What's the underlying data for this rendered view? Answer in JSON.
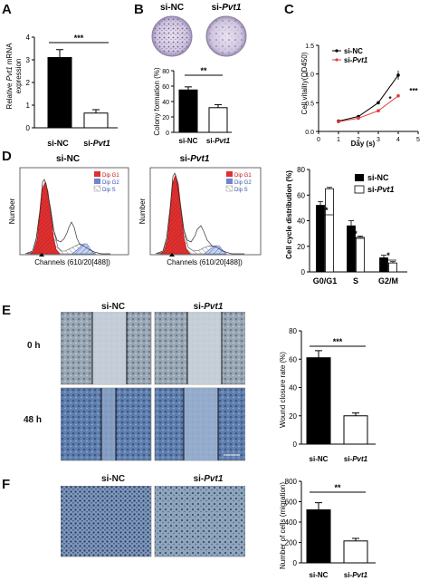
{
  "panels": {
    "A": "A",
    "B": "B",
    "C": "C",
    "D": "D",
    "E": "E",
    "F": "F"
  },
  "groups": {
    "nc": "si-NC",
    "pvt": "si-",
    "pvt_ital": "Pvt1"
  },
  "sig": {
    "three": "***",
    "two": "**",
    "one": "*"
  },
  "panelA": {
    "ylabel_pre": "Relative ",
    "ylabel_ital": "Pvt1",
    "ylabel_post": " mRNA",
    "ylabel2": "expression",
    "yticks": [
      "0",
      "1",
      "2",
      "3",
      "4"
    ]
  },
  "panelB": {
    "dish_labels": [
      "si-NC",
      "si-Pvt1"
    ],
    "ylabel": "Colony formation (%)",
    "yticks": [
      "0",
      "20",
      "40",
      "60",
      "80"
    ]
  },
  "panelC": {
    "ylabel": "Cell vitality(OD450)",
    "xlabel": "Day (s)",
    "xticks": [
      "0",
      "1",
      "2",
      "3",
      "4",
      "5"
    ],
    "yticks": [
      "0.0",
      "0.5",
      "1.0",
      "1.5"
    ],
    "legend": [
      "si-NC",
      "si-Pvt1"
    ]
  },
  "panelD": {
    "hist_titles": [
      "si-NC",
      "si-Pvt1"
    ],
    "hist_ylabel": "Number",
    "hist_xlabel": "Channels (610/20[488])",
    "hist_legend": [
      "Dip G1",
      "Dip G2",
      "Dip S"
    ],
    "bar_ylabel": "Cell cycle distribution (%)",
    "bar_yticks": [
      "0",
      "20",
      "40",
      "60",
      "80"
    ],
    "bar_categories": [
      "G0/G1",
      "S",
      "G2/M"
    ],
    "legend": [
      "si-NC",
      "si-Pvt1"
    ]
  },
  "panelE": {
    "col_heads": [
      "si-NC",
      "si-Pvt1"
    ],
    "row_heads": [
      "0 h",
      "48 h"
    ],
    "ylabel": "Wound closure rate (%)",
    "yticks": [
      "0",
      "20",
      "40",
      "60",
      "80"
    ]
  },
  "panelF": {
    "col_heads": [
      "si-NC",
      "si-Pvt1"
    ],
    "ylabel": "Number of cells (migration)",
    "yticks": [
      "0",
      "200",
      "400",
      "600",
      "800"
    ]
  },
  "chart_data": [
    {
      "id": "A",
      "type": "bar",
      "categories": [
        "si-NC",
        "si-Pvt1"
      ],
      "values": [
        3.1,
        0.65
      ],
      "errors": [
        0.35,
        0.15
      ],
      "ylim": [
        0,
        4
      ],
      "ylabel": "Relative Pvt1 mRNA expression",
      "annotation": "***",
      "colors": [
        "#000000",
        "#ffffff"
      ]
    },
    {
      "id": "B",
      "type": "bar",
      "categories": [
        "si-NC",
        "si-Pvt1"
      ],
      "values": [
        55,
        32
      ],
      "errors": [
        4,
        4
      ],
      "ylim": [
        0,
        80
      ],
      "ylabel": "Colony formation (%)",
      "annotation": "**",
      "colors": [
        "#000000",
        "#ffffff"
      ]
    },
    {
      "id": "C",
      "type": "line",
      "x": [
        1,
        2,
        3,
        4
      ],
      "series": [
        {
          "name": "si-NC",
          "values": [
            0.18,
            0.26,
            0.5,
            0.98
          ],
          "color": "#000000"
        },
        {
          "name": "si-Pvt1",
          "values": [
            0.17,
            0.23,
            0.36,
            0.62
          ],
          "color": "#e23b3b"
        }
      ],
      "xlim": [
        0,
        5
      ],
      "ylim": [
        0,
        1.5
      ],
      "xlabel": "Day (s)",
      "ylabel": "Cell vitality(OD450)",
      "annotations": [
        "*",
        "***"
      ]
    },
    {
      "id": "D",
      "type": "bar",
      "categories": [
        "G0/G1",
        "S",
        "G2/M"
      ],
      "series": [
        {
          "name": "si-NC",
          "values": [
            52,
            36,
            11
          ],
          "errors": [
            3,
            4,
            2
          ],
          "color": "#000000"
        },
        {
          "name": "si-Pvt1",
          "values": [
            65,
            27,
            7
          ],
          "errors": [
            1,
            1,
            1
          ],
          "color": "#ffffff"
        }
      ],
      "ylim": [
        0,
        80
      ],
      "ylabel": "Cell cycle distribution (%)",
      "annotations": [
        "**",
        "*",
        "*"
      ]
    },
    {
      "id": "E",
      "type": "bar",
      "categories": [
        "si-NC",
        "si-Pvt1"
      ],
      "values": [
        61,
        20
      ],
      "errors": [
        5,
        2
      ],
      "ylim": [
        0,
        80
      ],
      "ylabel": "Wound closure rate (%)",
      "annotation": "***",
      "colors": [
        "#000000",
        "#ffffff"
      ]
    },
    {
      "id": "F",
      "type": "bar",
      "categories": [
        "si-NC",
        "si-Pvt1"
      ],
      "values": [
        520,
        215
      ],
      "errors": [
        70,
        25
      ],
      "ylim": [
        0,
        800
      ],
      "ylabel": "Number of cells (migration)",
      "annotation": "**",
      "colors": [
        "#000000",
        "#ffffff"
      ]
    }
  ]
}
